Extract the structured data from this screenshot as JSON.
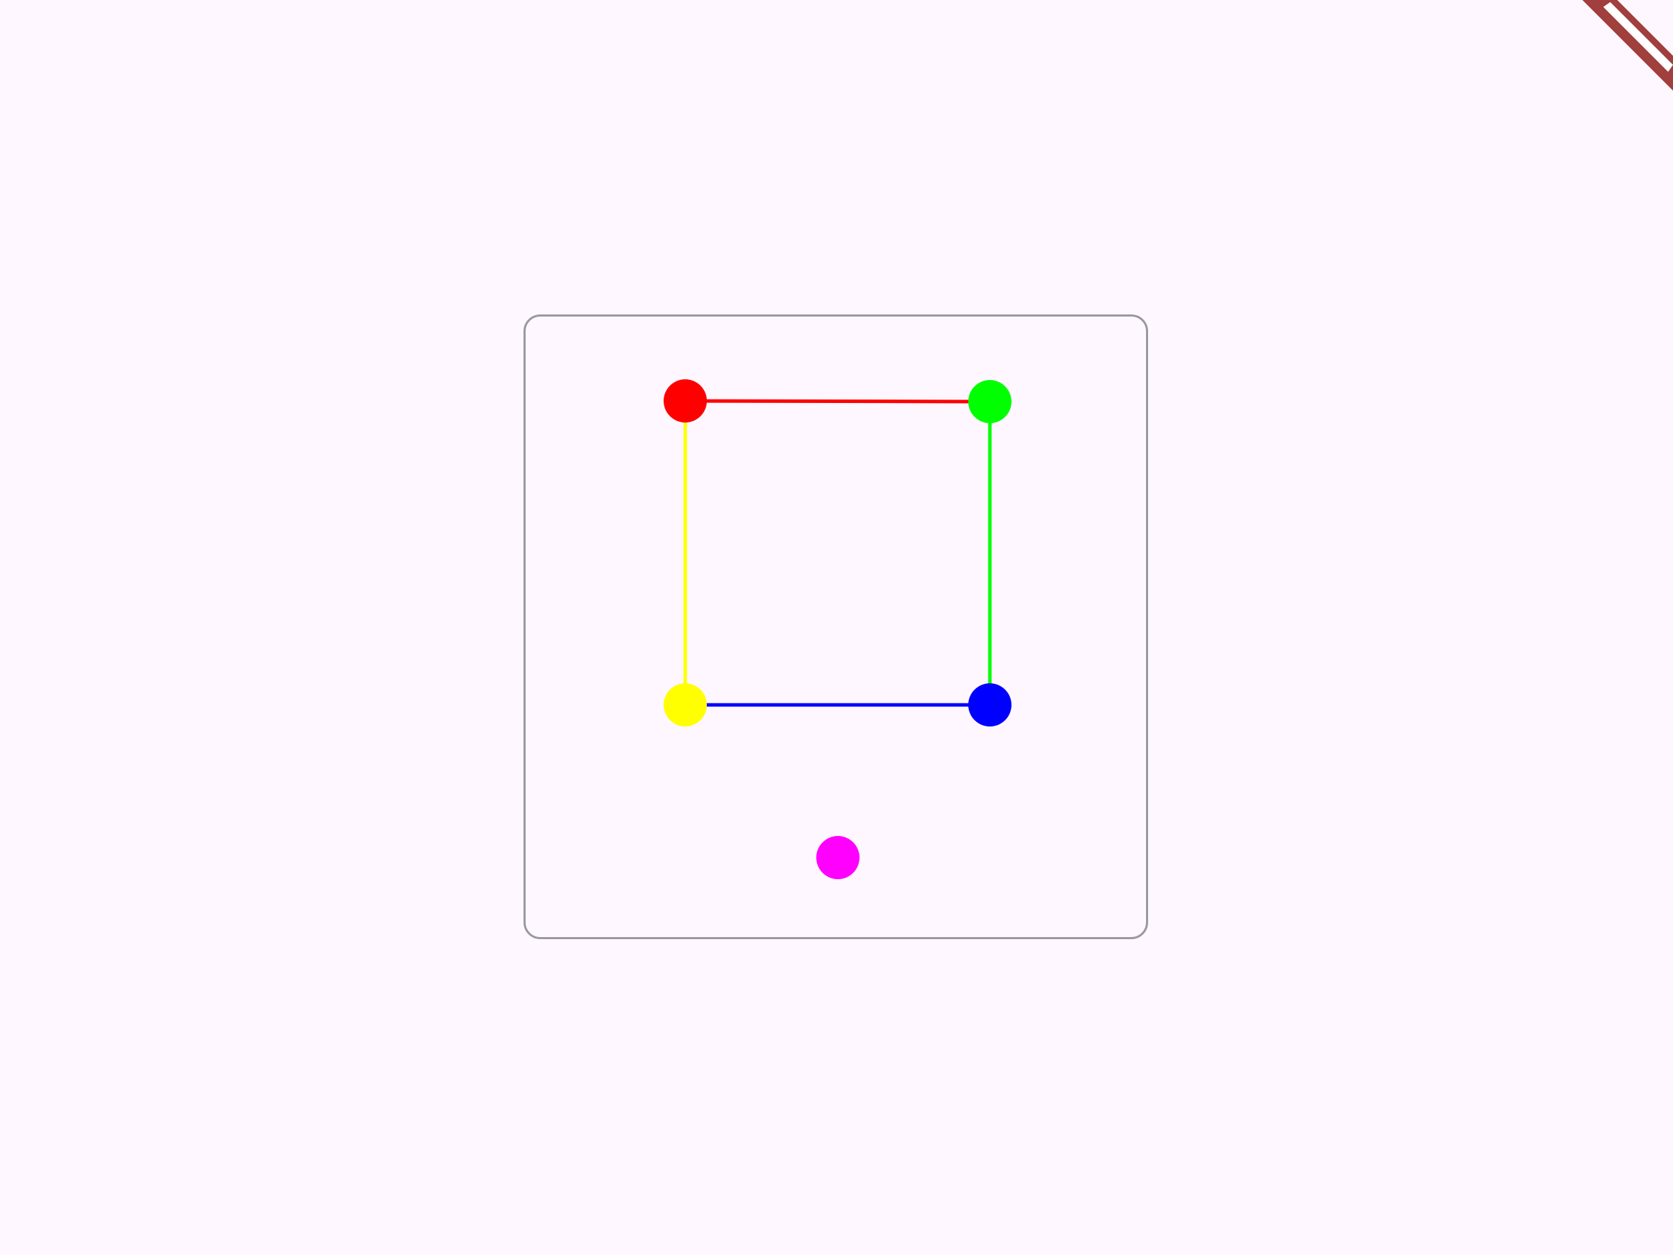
{
  "colors": {
    "background": "#fef7ff",
    "panel_border": "#9a989f",
    "banner_fill": "#a13e3e",
    "banner_band": "#ffffff"
  },
  "graph": {
    "nodes": [
      {
        "id": "red-node",
        "color": "#ff0000",
        "icon": "circle"
      },
      {
        "id": "green-node",
        "color": "#00ff00",
        "icon": "circle"
      },
      {
        "id": "blue-node",
        "color": "#0000ff",
        "icon": "circle"
      },
      {
        "id": "yellow-node",
        "color": "#ffff00",
        "icon": "circle"
      },
      {
        "id": "magenta-node",
        "color": "#ff00ff",
        "icon": "circle"
      }
    ],
    "edges": [
      {
        "from": "red-node",
        "to": "green-node",
        "color": "#ff0000"
      },
      {
        "from": "green-node",
        "to": "blue-node",
        "color": "#00ff00"
      },
      {
        "from": "blue-node",
        "to": "yellow-node",
        "color": "#0000ff"
      },
      {
        "from": "yellow-node",
        "to": "red-node",
        "color": "#ffff00"
      }
    ]
  },
  "debug_banner": {
    "icon": "debug-ribbon"
  }
}
